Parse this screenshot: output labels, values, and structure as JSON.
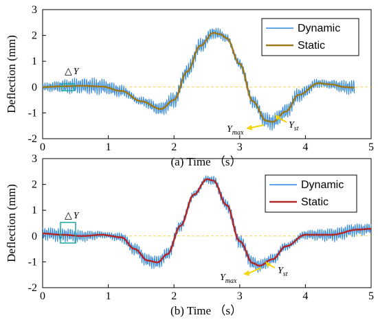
{
  "colors": {
    "dynamic": "#2f86e0",
    "static_a": "#9a7a1c",
    "static_b": "#b02a2a",
    "zero_line": "#f2d24a",
    "arrow": "#f2d400",
    "delta_box": "#19a9a0"
  },
  "chart_data": [
    {
      "type": "line",
      "ylabel": "Deflection (mm)",
      "caption": "(a) Time （s）",
      "xlim": [
        0,
        5
      ],
      "ylim": [
        -2,
        3
      ],
      "xticks": [
        "0",
        "1",
        "2",
        "3",
        "4",
        "5"
      ],
      "yticks": [
        "-2",
        "-1",
        "0",
        "1",
        "2",
        "3"
      ],
      "legend_position": "top-right",
      "series": [
        {
          "name": "Dynamic",
          "noise_amplitude": 0.35
        },
        {
          "name": "Static",
          "x": [
            0,
            0.3,
            0.6,
            0.9,
            1.2,
            1.5,
            1.8,
            2.0,
            2.2,
            2.4,
            2.6,
            2.7,
            2.8,
            3.0,
            3.2,
            3.4,
            3.5,
            3.7,
            3.9,
            4.2,
            4.4,
            4.6,
            4.75
          ],
          "y": [
            0,
            0.03,
            0.05,
            0.02,
            -0.15,
            -0.55,
            -0.85,
            -0.5,
            0.6,
            1.6,
            2.1,
            2.05,
            1.9,
            0.9,
            -0.55,
            -1.3,
            -1.35,
            -0.95,
            -0.3,
            0.15,
            0.1,
            0.0,
            -0.02
          ]
        }
      ],
      "annotations": {
        "delta": "△",
        "y": "Y",
        "ymax_base": "Y",
        "ymax_sub": "max",
        "yst_base": "Y",
        "yst_sub": "st"
      }
    },
    {
      "type": "line",
      "ylabel": "Deflection (mm)",
      "caption": "(b) Time （s）",
      "xlim": [
        0,
        5
      ],
      "ylim": [
        -2,
        3
      ],
      "xticks": [
        "0",
        "1",
        "2",
        "3",
        "4",
        "5"
      ],
      "yticks": [
        "-2",
        "-1",
        "0",
        "1",
        "2",
        "3"
      ],
      "legend_position": "top-right",
      "series": [
        {
          "name": "Dynamic",
          "noise_amplitude": 0.3
        },
        {
          "name": "Static",
          "x": [
            0,
            0.3,
            0.6,
            0.9,
            1.2,
            1.4,
            1.6,
            1.75,
            1.9,
            2.1,
            2.3,
            2.5,
            2.6,
            2.8,
            3.0,
            3.2,
            3.3,
            3.5,
            3.7,
            4.0,
            4.4,
            4.8,
            5.0
          ],
          "y": [
            0.1,
            0.05,
            0.0,
            0.05,
            -0.05,
            -0.5,
            -0.95,
            -1.02,
            -0.7,
            0.4,
            1.6,
            2.2,
            2.15,
            1.2,
            -0.2,
            -1.05,
            -1.15,
            -0.9,
            -0.4,
            0.05,
            0.05,
            0.25,
            0.28
          ]
        }
      ],
      "annotations": {
        "delta": "△",
        "y": "Y",
        "ymax_base": "Y",
        "ymax_sub": "max",
        "yst_base": "Y",
        "yst_sub": "st"
      }
    }
  ]
}
